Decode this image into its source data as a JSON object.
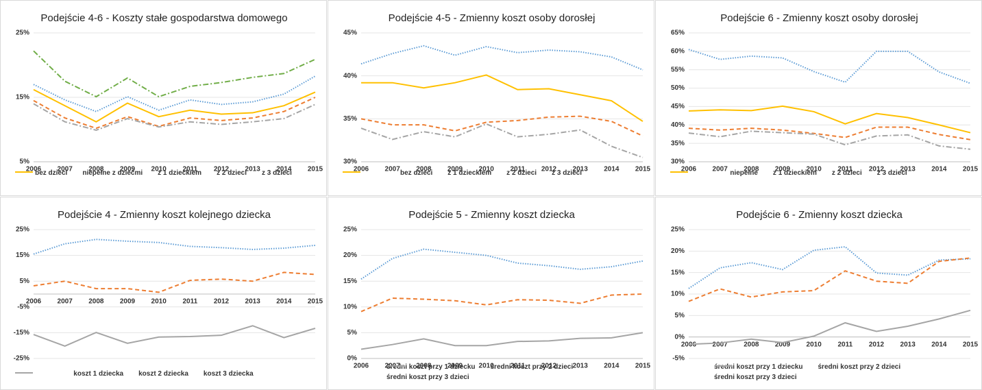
{
  "chart_data": [
    {
      "type": "line",
      "title": "Podejście 4-6 - Koszty stałe gospodarstwa domowego",
      "categories": [
        "2006",
        "2007",
        "2008",
        "2009",
        "2010",
        "2011",
        "2012",
        "2013",
        "2014",
        "2015"
      ],
      "ylim": [
        5,
        25
      ],
      "yticks": [
        {
          "value": 5,
          "label": "5%"
        },
        {
          "value": 15,
          "label": "15%"
        },
        {
          "value": 25,
          "label": "25%"
        }
      ],
      "series": [
        {
          "name": "bez dzieci",
          "color": "#5b9bd5",
          "style": "dotted",
          "values": [
            17.0,
            14.6,
            12.8,
            15.1,
            13.0,
            14.6,
            13.9,
            14.3,
            15.5,
            18.3
          ]
        },
        {
          "name": "niepełne z dziećmi",
          "color": "#70ad47",
          "style": "dashdot",
          "values": [
            22.2,
            17.5,
            15.1,
            18.0,
            15.1,
            16.7,
            17.3,
            18.1,
            18.7,
            20.9
          ]
        },
        {
          "name": "z 1 dzieckiem",
          "color": "#ed7d31",
          "style": "dashed",
          "values": [
            14.5,
            11.8,
            10.2,
            12.0,
            10.5,
            11.8,
            11.4,
            11.8,
            12.8,
            15.0
          ]
        },
        {
          "name": "z 2 dzieci",
          "color": "#a5a5a5",
          "style": "dashdot",
          "values": [
            14.0,
            11.2,
            9.9,
            11.7,
            10.4,
            11.2,
            10.8,
            11.2,
            11.7,
            13.9
          ]
        },
        {
          "name": "z 3 dzieci",
          "color": "#ffc000",
          "style": "solid",
          "values": [
            16.2,
            13.7,
            11.2,
            14.1,
            12.0,
            13.0,
            12.4,
            12.6,
            13.7,
            15.8
          ]
        }
      ]
    },
    {
      "type": "line",
      "title": "Podejście 4-5 - Zmienny koszt osoby dorosłej",
      "categories": [
        "2006",
        "2007",
        "2008",
        "2009",
        "2010",
        "2011",
        "2012",
        "2013",
        "2014",
        "2015"
      ],
      "ylim": [
        30,
        45
      ],
      "yticks": [
        {
          "value": 30,
          "label": "30%"
        },
        {
          "value": 35,
          "label": "35%"
        },
        {
          "value": 40,
          "label": "40%"
        },
        {
          "value": 45,
          "label": "45%"
        }
      ],
      "series": [
        {
          "name": "bez dzieci",
          "color": "#5b9bd5",
          "style": "dotted",
          "values": [
            41.4,
            42.6,
            43.5,
            42.4,
            43.4,
            42.7,
            43.0,
            42.8,
            42.2,
            40.7
          ]
        },
        {
          "name": "z 1 dzieckiem",
          "color": "#ed7d31",
          "style": "dashed",
          "values": [
            35.0,
            34.3,
            34.3,
            33.6,
            34.6,
            34.8,
            35.2,
            35.3,
            34.7,
            33.0
          ]
        },
        {
          "name": "z 2 dzieci",
          "color": "#a5a5a5",
          "style": "dashdot",
          "values": [
            33.9,
            32.6,
            33.5,
            32.9,
            34.4,
            32.9,
            33.2,
            33.7,
            31.8,
            30.5
          ]
        },
        {
          "name": "z 3 dzieci",
          "color": "#ffc000",
          "style": "solid",
          "values": [
            39.2,
            39.2,
            38.6,
            39.2,
            40.1,
            38.4,
            38.5,
            37.8,
            37.1,
            34.7
          ]
        }
      ]
    },
    {
      "type": "line",
      "title": "Podejście 6 - Zmienny koszt osoby dorosłej",
      "categories": [
        "2006",
        "2007",
        "2008",
        "2009",
        "2010",
        "2011",
        "2012",
        "2013",
        "2014",
        "2015"
      ],
      "ylim": [
        30,
        65
      ],
      "yticks": [
        {
          "value": 30,
          "label": "30%"
        },
        {
          "value": 35,
          "label": "35%"
        },
        {
          "value": 40,
          "label": "40%"
        },
        {
          "value": 45,
          "label": "45%"
        },
        {
          "value": 50,
          "label": "50%"
        },
        {
          "value": 55,
          "label": "55%"
        },
        {
          "value": 60,
          "label": "60%"
        },
        {
          "value": 65,
          "label": "65%"
        }
      ],
      "series": [
        {
          "name": "niepełne",
          "color": "#5b9bd5",
          "style": "dotted",
          "values": [
            60.5,
            57.8,
            58.7,
            58.2,
            54.5,
            51.6,
            60.0,
            60.0,
            54.4,
            51.3
          ]
        },
        {
          "name": "z 1 dzieckiem",
          "color": "#ed7d31",
          "style": "dashed",
          "values": [
            39.1,
            38.6,
            39.1,
            38.6,
            37.7,
            36.6,
            39.4,
            39.4,
            37.4,
            36.0
          ]
        },
        {
          "name": "z 2 dzieci",
          "color": "#a5a5a5",
          "style": "dashdot",
          "values": [
            37.8,
            36.8,
            38.3,
            37.9,
            37.5,
            34.6,
            37.0,
            37.3,
            34.3,
            33.4
          ]
        },
        {
          "name": "z 3 dzieci",
          "color": "#ffc000",
          "style": "solid",
          "values": [
            43.8,
            44.1,
            43.9,
            45.1,
            43.6,
            40.3,
            43.1,
            42.0,
            40.0,
            37.9
          ]
        }
      ]
    },
    {
      "type": "line",
      "title": "Podejście 4 - Zmienny koszt kolejnego dziecka",
      "categories": [
        "2006",
        "2007",
        "2008",
        "2009",
        "2010",
        "2011",
        "2012",
        "2013",
        "2014",
        "2015"
      ],
      "ylim": [
        -25,
        25
      ],
      "yticks": [
        {
          "value": -25,
          "label": "-25%"
        },
        {
          "value": -15,
          "label": "-15%"
        },
        {
          "value": -5,
          "label": "-5%"
        },
        {
          "value": 5,
          "label": "5%"
        },
        {
          "value": 15,
          "label": "15%"
        },
        {
          "value": 25,
          "label": "25%"
        }
      ],
      "series": [
        {
          "name": "koszt 1 dziecka",
          "color": "#5b9bd5",
          "style": "dotted",
          "values": [
            15.5,
            19.5,
            21.2,
            20.5,
            20.0,
            18.5,
            18.0,
            17.3,
            17.8,
            18.9
          ]
        },
        {
          "name": "koszt 2 dziecka",
          "color": "#ed7d31",
          "style": "dashed",
          "values": [
            3.2,
            5.0,
            2.1,
            2.1,
            0.7,
            5.3,
            5.8,
            5.0,
            8.4,
            7.6
          ]
        },
        {
          "name": "koszt 3 dziecka",
          "color": "#a5a5a5",
          "style": "solid",
          "values": [
            -15.7,
            -20.2,
            -14.9,
            -19.1,
            -16.7,
            -16.5,
            -16.0,
            -12.3,
            -16.9,
            -13.3
          ]
        }
      ]
    },
    {
      "type": "line",
      "title": "Podejście 5 - Zmienny koszt dziecka",
      "categories": [
        "2006",
        "2007",
        "2008",
        "2009",
        "2010",
        "2011",
        "2012",
        "2013",
        "2014",
        "2015"
      ],
      "ylim": [
        0,
        25
      ],
      "yticks": [
        {
          "value": 0,
          "label": "0%"
        },
        {
          "value": 5,
          "label": "5%"
        },
        {
          "value": 10,
          "label": "10%"
        },
        {
          "value": 15,
          "label": "15%"
        },
        {
          "value": 20,
          "label": "20%"
        },
        {
          "value": 25,
          "label": "25%"
        }
      ],
      "series": [
        {
          "name": "średni koszt przy 1 dziecku",
          "color": "#5b9bd5",
          "style": "dotted",
          "values": [
            15.4,
            19.4,
            21.2,
            20.6,
            20.0,
            18.5,
            18.0,
            17.3,
            17.8,
            18.9
          ]
        },
        {
          "name": "średni koszt przy 2 dzieci",
          "color": "#ed7d31",
          "style": "dashed",
          "values": [
            9.1,
            11.7,
            11.5,
            11.2,
            10.4,
            11.4,
            11.3,
            10.7,
            12.3,
            12.5
          ]
        },
        {
          "name": "średni koszt przy 3 dzieci",
          "color": "#a5a5a5",
          "style": "solid",
          "values": [
            1.8,
            2.7,
            3.8,
            2.5,
            2.5,
            3.3,
            3.4,
            3.9,
            4.0,
            5.0
          ]
        }
      ]
    },
    {
      "type": "line",
      "title": "Podejście 6 - Zmienny koszt dziecka",
      "categories": [
        "2006",
        "2007",
        "2008",
        "2009",
        "2010",
        "2011",
        "2012",
        "2013",
        "2014",
        "2015"
      ],
      "ylim": [
        -5,
        25
      ],
      "yticks": [
        {
          "value": -5,
          "label": "-5%"
        },
        {
          "value": 0,
          "label": "0%"
        },
        {
          "value": 5,
          "label": "5%"
        },
        {
          "value": 10,
          "label": "10%"
        },
        {
          "value": 15,
          "label": "15%"
        },
        {
          "value": 20,
          "label": "20%"
        },
        {
          "value": 25,
          "label": "25%"
        }
      ],
      "series": [
        {
          "name": "średni koszt przy 1 dziecku",
          "color": "#5b9bd5",
          "style": "dotted",
          "values": [
            11.3,
            16.1,
            17.3,
            15.7,
            20.2,
            21.0,
            14.9,
            14.4,
            17.9,
            18.2
          ]
        },
        {
          "name": "średni koszt przy 2 dzieci",
          "color": "#ed7d31",
          "style": "dashed",
          "values": [
            8.3,
            11.2,
            9.3,
            10.5,
            10.8,
            15.4,
            13.0,
            12.5,
            17.6,
            18.4
          ]
        },
        {
          "name": "średni koszt przy 3 dzieci",
          "color": "#a5a5a5",
          "style": "solid",
          "values": [
            -1.7,
            -1.4,
            -0.5,
            -1.3,
            0.2,
            3.3,
            1.3,
            2.5,
            4.2,
            6.2
          ]
        }
      ]
    }
  ]
}
